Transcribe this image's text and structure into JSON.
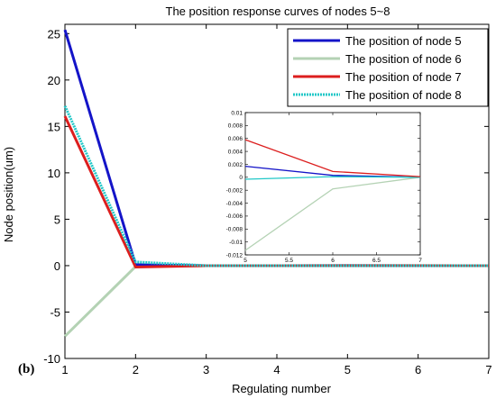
{
  "panel_label": "(b)",
  "chart_data": [
    {
      "type": "line",
      "title": "The position response curves of nodes 5~8",
      "xlabel": "Regulating number",
      "ylabel": "Node position(um)",
      "xlim": [
        1,
        7
      ],
      "ylim": [
        -10,
        26
      ],
      "xticks": [
        1,
        2,
        3,
        4,
        5,
        6,
        7
      ],
      "yticks": [
        -10,
        -5,
        0,
        5,
        10,
        15,
        20,
        25
      ],
      "legend_position": "top-right",
      "x": [
        1,
        2,
        3,
        4,
        5,
        6,
        7
      ],
      "series": [
        {
          "name": "The position of node 5",
          "color": "#1414c8",
          "style": "solid",
          "values": [
            25.4,
            0.1,
            0.0,
            0.0,
            0.002,
            0.0,
            0.0
          ]
        },
        {
          "name": "The position of node 6",
          "color": "#b4d2b4",
          "style": "solid",
          "values": [
            -7.6,
            -0.1,
            0.0,
            0.0,
            -0.011,
            -0.002,
            0.0
          ]
        },
        {
          "name": "The position of node 7",
          "color": "#dc1e1e",
          "style": "solid",
          "values": [
            16.1,
            -0.15,
            0.0,
            0.0,
            0.006,
            0.001,
            0.0
          ]
        },
        {
          "name": "The position of node 8",
          "color": "#22c8c8",
          "style": "dotted",
          "values": [
            17.2,
            0.4,
            0.0,
            0.0,
            -0.0003,
            0.0,
            0.0
          ]
        }
      ]
    },
    {
      "type": "line",
      "title": "",
      "xlim": [
        5,
        7
      ],
      "ylim": [
        -0.012,
        0.01
      ],
      "xticks": [
        5,
        5.5,
        6,
        6.5,
        7
      ],
      "yticks": [
        0.01,
        0.008,
        0.006,
        0.004,
        0.002,
        0,
        -0.002,
        -0.004,
        -0.006,
        -0.008,
        -0.01,
        -0.012
      ],
      "x": [
        5,
        6,
        7
      ],
      "series": [
        {
          "color": "#1414c8",
          "values": [
            0.0017,
            0.0003,
            0.0
          ]
        },
        {
          "color": "#b4d2b4",
          "values": [
            -0.0113,
            -0.0018,
            0.0
          ]
        },
        {
          "color": "#dc1e1e",
          "values": [
            0.0058,
            0.0009,
            0.0001
          ]
        },
        {
          "color": "#22c8c8",
          "values": [
            -0.0003,
            0.0001,
            0.0
          ]
        }
      ]
    }
  ]
}
